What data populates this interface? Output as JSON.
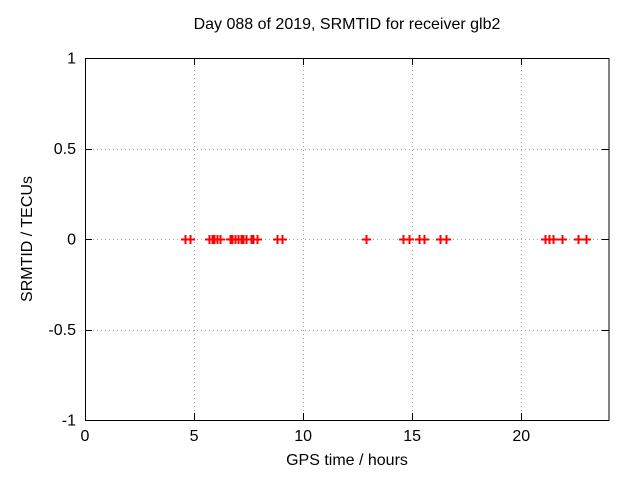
{
  "chart_data": {
    "type": "scatter",
    "title": "Day 088 of 2019, SRMTID for receiver glb2",
    "xlabel": "GPS time / hours",
    "ylabel": "SRMTID / TECUs",
    "xlim": [
      0,
      24
    ],
    "ylim": [
      -1,
      1
    ],
    "xticks": [
      {
        "value": 0,
        "label": "0"
      },
      {
        "value": 5,
        "label": "5"
      },
      {
        "value": 10,
        "label": "10"
      },
      {
        "value": 15,
        "label": "15"
      },
      {
        "value": 20,
        "label": "20"
      }
    ],
    "yticks": [
      {
        "value": -1,
        "label": "-1"
      },
      {
        "value": -0.5,
        "label": "-0.5"
      },
      {
        "value": 0,
        "label": "0"
      },
      {
        "value": 0.5,
        "label": "0.5"
      },
      {
        "value": 1,
        "label": "1"
      }
    ],
    "grid": true,
    "legend": "none",
    "marker": "plus",
    "series": [
      {
        "name": "SRMTID",
        "x": [
          4.6,
          4.82,
          5.7,
          5.82,
          5.93,
          6.04,
          6.17,
          6.65,
          6.76,
          6.88,
          7.01,
          7.13,
          7.25,
          7.37,
          7.59,
          7.71,
          7.89,
          8.82,
          9.04,
          12.86,
          14.6,
          14.84,
          15.3,
          15.56,
          16.28,
          16.56,
          21.1,
          21.28,
          21.47,
          21.88,
          22.62,
          22.98
        ],
        "y": [
          0,
          0,
          0,
          0,
          0,
          0,
          0,
          0,
          0,
          0,
          0,
          0,
          0,
          0,
          0,
          0,
          0,
          0,
          0,
          0,
          0,
          0,
          0,
          0,
          0,
          0,
          0,
          0,
          0,
          0,
          0,
          0
        ]
      }
    ]
  },
  "colors": {
    "background": "#ffffff",
    "border": "#000000",
    "grid": "#a8a8a8",
    "marker": "#ff0000",
    "text": "#000000"
  }
}
